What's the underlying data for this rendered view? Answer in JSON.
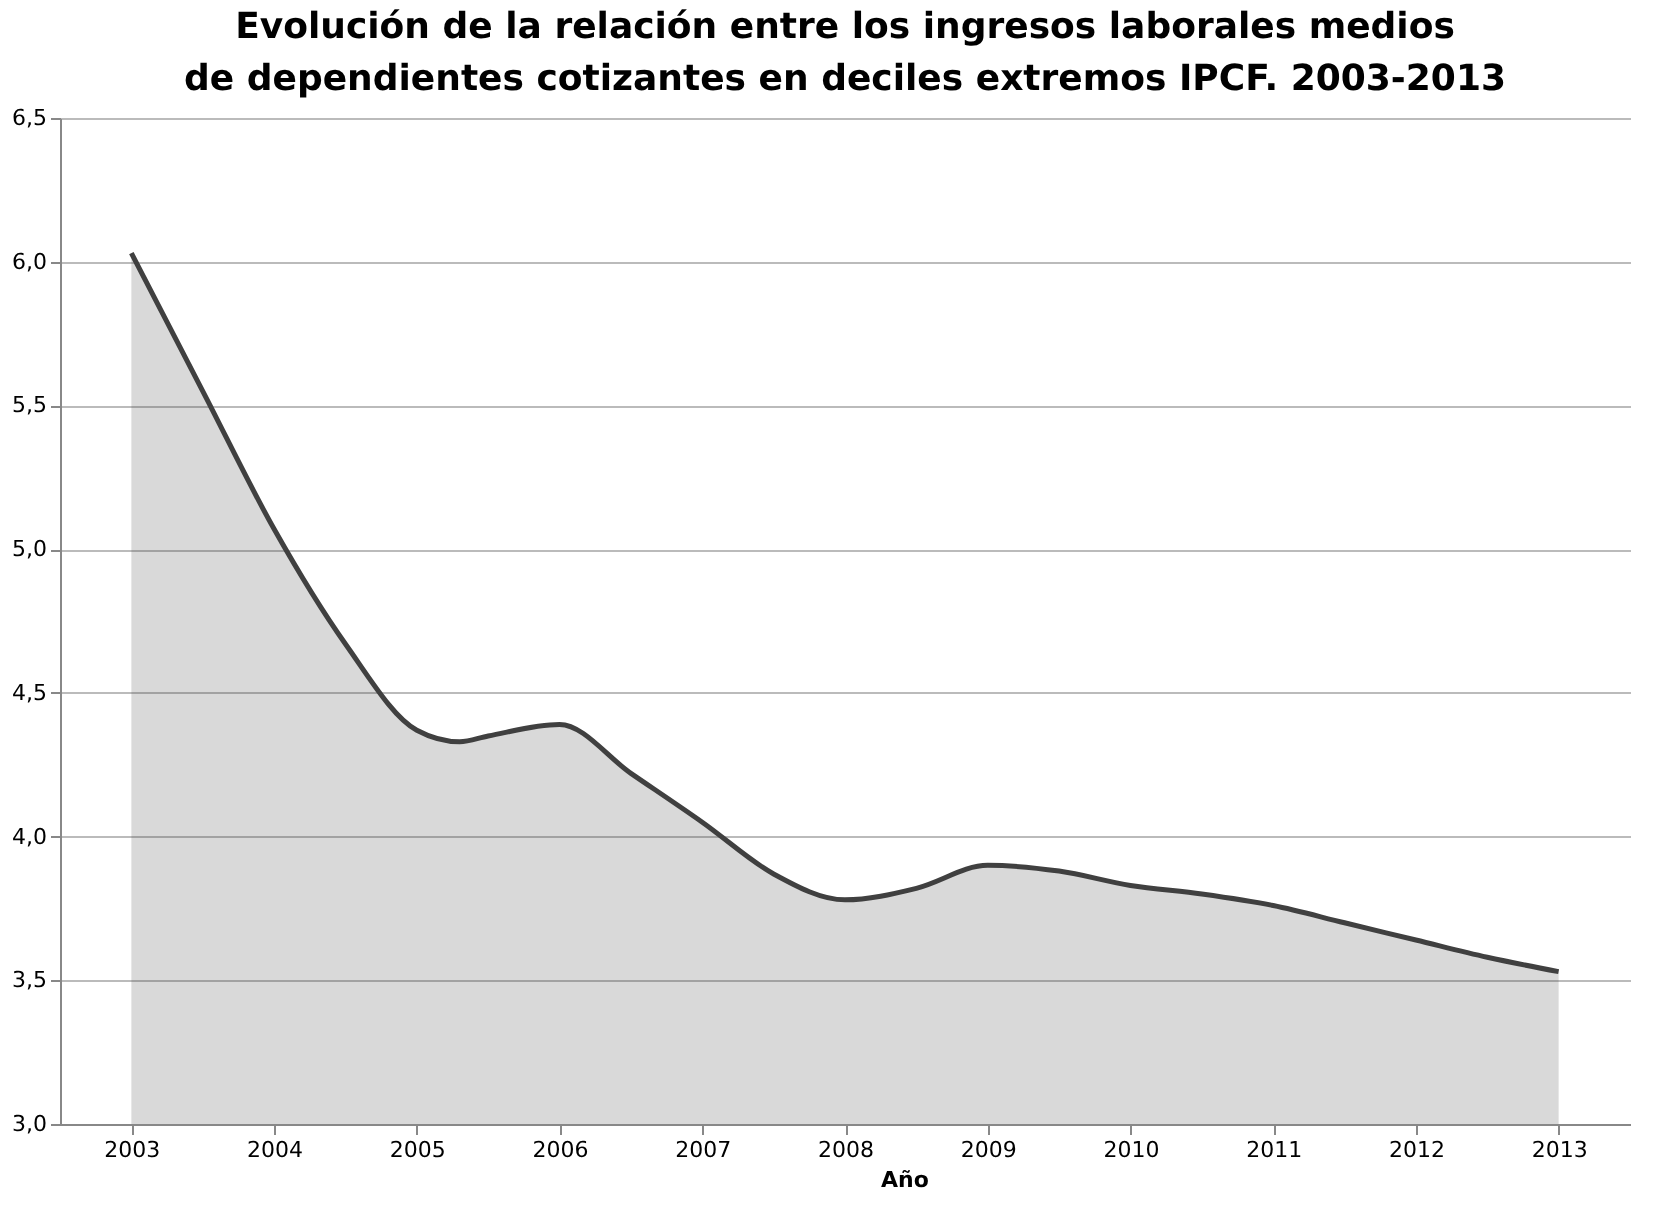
{
  "chart_data": {
    "type": "area",
    "title": "Evolución de la relación entre los ingresos laborales medios de dependientes cotizantes en deciles extremos IPCF. 2003-2013",
    "xlabel": "Año",
    "x": [
      2003,
      2003.5,
      2004,
      2004.5,
      2005,
      2005.3,
      2005.5,
      2006,
      2006.5,
      2007,
      2007.5,
      2008,
      2008.5,
      2009,
      2009.5,
      2010,
      2010.5,
      2011,
      2011.5,
      2012,
      2012.5,
      2013
    ],
    "series": [
      {
        "color": "#404040",
        "values": [
          6.03,
          5.55,
          5.07,
          4.67,
          4.37,
          4.33,
          4.35,
          4.39,
          4.22,
          4.05,
          3.87,
          3.78,
          3.82,
          3.9,
          3.88,
          3.83,
          3.8,
          3.76,
          3.7,
          3.64,
          3.58,
          3.53
        ]
      }
    ],
    "xlim": [
      2002.5,
      2013.5
    ],
    "xticks": [
      2003,
      2004,
      2005,
      2006,
      2007,
      2008,
      2009,
      2010,
      2011,
      2012,
      2013
    ],
    "ylim": [
      3.0,
      6.5
    ],
    "yticks": [
      {
        "value": 3.0,
        "label": "3,0"
      },
      {
        "value": 3.5,
        "label": "3,5"
      },
      {
        "value": 4.0,
        "label": "4,0"
      },
      {
        "value": 4.5,
        "label": "4,5"
      },
      {
        "value": 5.0,
        "label": "5,0"
      },
      {
        "value": 5.5,
        "label": "5,5"
      },
      {
        "value": 6.0,
        "label": "6,0"
      },
      {
        "value": 6.5,
        "label": "6,5"
      }
    ],
    "grid": "y",
    "marker": "none",
    "line_style": "solid"
  }
}
